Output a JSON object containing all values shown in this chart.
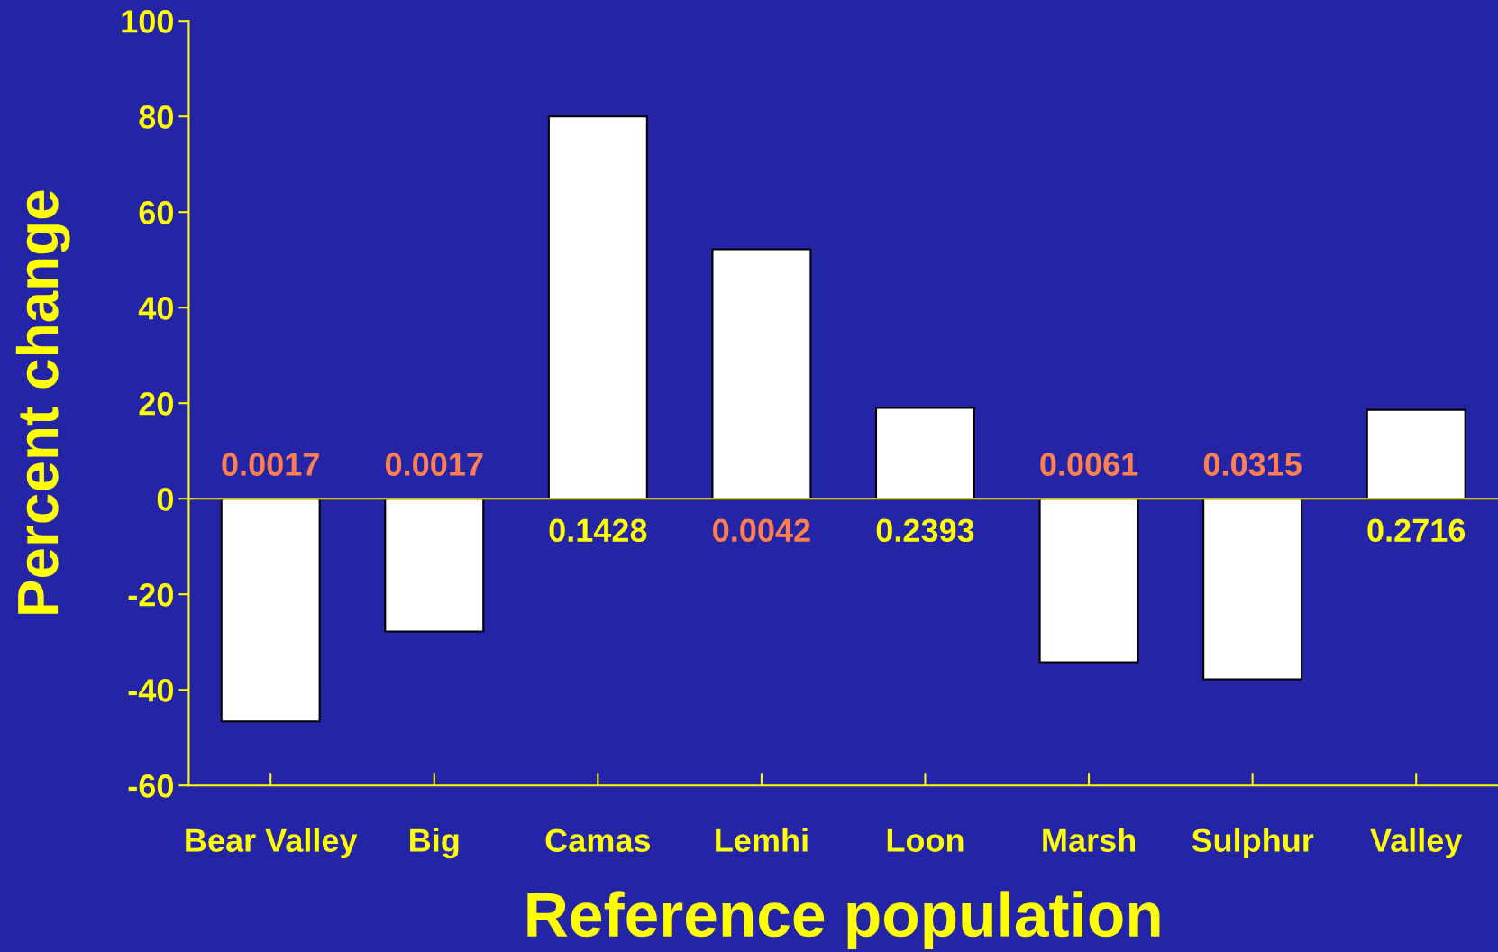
{
  "chart_data": {
    "type": "bar",
    "xlabel": "Reference population",
    "ylabel": "Percent change",
    "categories": [
      "Bear Valley",
      "Big",
      "Camas",
      "Lemhi",
      "Loon",
      "Marsh",
      "Sulphur",
      "Valley"
    ],
    "values": [
      -46.6,
      -27.8,
      80,
      52.2,
      19,
      -34.2,
      -37.8,
      18.6
    ],
    "color": "#ffffff",
    "ylim": [
      -60,
      100
    ],
    "yticks": [
      -60,
      -40,
      -20,
      0,
      20,
      40,
      60,
      80,
      100
    ],
    "ref_lines": [
      {
        "axis": "y",
        "value": 0,
        "color": "#ffff00"
      }
    ],
    "grid": false,
    "legend": false,
    "annotations": [
      "0.0017",
      "0.0017",
      "0.1428",
      "0.0042",
      "0.2393",
      "0.0061",
      "0.0315",
      "0.2716"
    ]
  }
}
